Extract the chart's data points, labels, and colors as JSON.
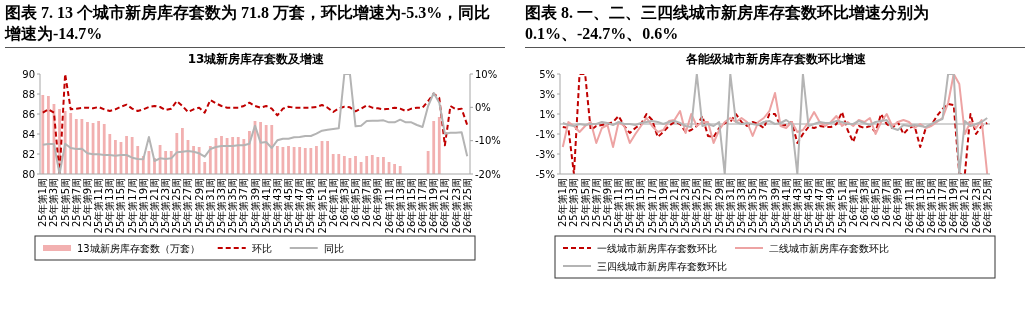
{
  "chart_data": [
    {
      "type": "bar",
      "title": "图表 7. 13 个城市新房库存套数为 71.8 万套，环比增速为-5.3%，同比增速为-14.7%",
      "subtitle": "13城新房库存套数及增速",
      "categories": [
        "25年第1周",
        null,
        "25年第3周",
        null,
        "25年第5周",
        null,
        "25年第7周",
        null,
        "25年第9周",
        null,
        "25年第11周",
        null,
        "25年第13周",
        null,
        "25年第15周",
        null,
        "25年第17周",
        null,
        "25年第19周",
        null,
        "25年第21周",
        null,
        "25年第23周",
        null,
        "25年第25周",
        null,
        "25年第27周",
        null,
        "25年第29周",
        null,
        "25年第31周",
        null,
        "25年第33周",
        null,
        "25年第35周",
        null,
        "25年第37周",
        null,
        "25年第39周",
        null,
        "25年第41周",
        null,
        "25年第43周",
        null,
        "25年第45周",
        null,
        "25年第47周",
        null,
        "25年第49周",
        null,
        "25年第51周",
        null,
        "26年第1周",
        null,
        "26年第3周",
        null,
        "26年第5周",
        null,
        "26年第7周",
        null,
        "26年第9周",
        null,
        "26年第11周",
        null,
        "26年第13周",
        null,
        "26年第15周",
        null,
        "26年第17周",
        null,
        "26年第19周",
        null,
        "26年第21周",
        null,
        "26年第23周",
        null,
        "26年第25周"
      ],
      "series": [
        {
          "name": "13城新房库存套数（万套）",
          "type": "bar",
          "color": "#f2b0b0",
          "values": [
            87.9,
            87.8,
            87.0,
            86.5,
            86.3,
            86.1,
            85.5,
            85.5,
            85.2,
            85.1,
            85.3,
            85.0,
            84.0,
            83.4,
            83.2,
            83.8,
            83.7,
            82.8,
            81.8,
            82.3,
            81.6,
            82.9,
            82.3,
            82.3,
            84.1,
            84.6,
            83.4,
            82.8,
            82.7,
            81.2,
            82.8,
            83.6,
            83.8,
            83.6,
            83.7,
            83.7,
            83.5,
            84.3,
            85.3,
            85.2,
            84.9,
            84.9,
            82.8,
            82.7,
            82.8,
            82.7,
            82.7,
            82.6,
            82.6,
            82.8,
            83.3,
            83.3,
            82.0,
            82.0,
            81.8,
            81.6,
            81.8,
            81.2,
            81.8,
            81.9,
            81.7,
            81.7,
            81.2,
            81.0,
            80.8,
            null,
            null,
            null,
            null,
            82.3,
            85.3,
            85.7,
            null,
            null,
            null,
            null,
            null
          ]
        },
        {
          "name": "环比",
          "type": "line",
          "axis": "y2",
          "line_style": "dashed",
          "color": "#c00000",
          "values": [
            -1.6,
            -0.6,
            -1.6,
            -20,
            10,
            -0.6,
            -0.4,
            -0.2,
            -0.1,
            -0.3,
            0.1,
            -0.6,
            -1.1,
            -0.6,
            0.2,
            0.8,
            -0.4,
            -1.1,
            -0.6,
            0.1,
            0.4,
            0.1,
            -0.8,
            -0.4,
            1.9,
            0.4,
            -1.4,
            -0.6,
            -0.1,
            -1.6,
            2.2,
            1.2,
            0.4,
            -0.1,
            -0.1,
            -0.1,
            0.4,
            1.4,
            0.4,
            -0.1,
            0.4,
            -0.4,
            -2.4,
            -0.4,
            0.2,
            -0.1,
            -0.1,
            -0.1,
            -0.1,
            0.1,
            0.7,
            -0.1,
            -1.4,
            -0.3,
            0.2,
            0,
            -1.2,
            -0.4,
            0.6,
            -0.1,
            -0.3,
            -0.6,
            -0.4,
            -0.1,
            -0.4,
            -1.1,
            -0.4,
            -0.1,
            -0.1,
            1.9,
            4.1,
            2.8,
            -11.4,
            0.4,
            -0.6,
            -0.4,
            -5.3
          ]
        },
        {
          "name": "同比",
          "type": "line",
          "axis": "y2",
          "color": "#b4b4b4",
          "values": [
            -11.2,
            -11.0,
            -11.0,
            -20,
            -10.9,
            -12.2,
            -12.5,
            -12.4,
            -13.8,
            -14.1,
            -14.1,
            -14.3,
            -14.3,
            -14.5,
            -14.3,
            -14.3,
            -15.1,
            -15.5,
            -15.6,
            -8.9,
            -16.1,
            -15.3,
            -15.5,
            -15.3,
            -13.5,
            -13.3,
            -13.1,
            -13.3,
            -13.8,
            -14.8,
            -12.5,
            -11.9,
            -11.6,
            -11.6,
            -11.6,
            -11.4,
            -11.4,
            -10.9,
            -5.5,
            -10.6,
            -10.4,
            -12.2,
            -9.9,
            -9.4,
            -9.4,
            -9.0,
            -8.9,
            -8.6,
            -8.6,
            -7.9,
            -7.0,
            -6.7,
            -6.5,
            -6.3,
            10,
            10,
            -5.7,
            -5.5,
            -4.1,
            -4.0,
            -4.0,
            -3.9,
            -4.5,
            -4.5,
            -3.7,
            -4.5,
            -4.5,
            -5.3,
            -5.9,
            0.4,
            4.3,
            1.4,
            -7.9,
            -7.6,
            -7.6,
            -7.5,
            -14.7
          ]
        }
      ],
      "ylim": [
        80,
        90
      ],
      "yticks": [
        80,
        82,
        84,
        86,
        88,
        90
      ],
      "y2lim": [
        -20,
        10
      ],
      "y2ticks": [
        {
          "value": -20,
          "label": "-20%"
        },
        {
          "value": -10,
          "label": "-10%"
        },
        {
          "value": 0,
          "label": "0%"
        },
        {
          "value": 10,
          "label": "10%"
        }
      ],
      "legend": "bottom"
    },
    {
      "type": "line",
      "title": "图表 8. 一、二、三四线城市新房库存套数环比增速分别为 0.1%、-24.7%、0.6%",
      "subtitle": "各能级城市新房库存套数环比增速",
      "categories": [
        "25年第1周",
        null,
        "25年第3周",
        null,
        "25年第5周",
        null,
        "25年第7周",
        null,
        "25年第9周",
        null,
        "25年第11周",
        null,
        "25年第13周",
        null,
        "25年第15周",
        null,
        "25年第17周",
        null,
        "25年第19周",
        null,
        "25年第21周",
        null,
        "25年第23周",
        null,
        "25年第25周",
        null,
        "25年第27周",
        null,
        "25年第29周",
        null,
        "25年第31周",
        null,
        "25年第33周",
        null,
        "25年第35周",
        null,
        "25年第37周",
        null,
        "25年第39周",
        null,
        "25年第41周",
        null,
        "25年第43周",
        null,
        "25年第45周",
        null,
        "25年第47周",
        null,
        "25年第49周",
        null,
        "25年第51周",
        null,
        "26年第1周",
        null,
        "26年第3周",
        null,
        "26年第5周",
        null,
        "26年第7周",
        null,
        "26年第9周",
        null,
        "26年第11周",
        null,
        "26年第13周",
        null,
        "26年第15周",
        null,
        "26年第17周",
        null,
        "26年第19周",
        null,
        "26年第21周",
        null,
        "26年第23周",
        null,
        "26年第25周"
      ],
      "series": [
        {
          "name": "一线城市新房库存套数环比",
          "line_style": "dashed",
          "color": "#c00000",
          "values": [
            -0.3,
            -0.4,
            -5,
            5,
            5,
            -0.6,
            -0.2,
            -0.1,
            0,
            0.2,
            0.8,
            -0.2,
            -0.9,
            -0.4,
            0,
            1.0,
            0.4,
            -1.3,
            -0.8,
            -0.2,
            0.2,
            0,
            -0.8,
            -0.6,
            -0.2,
            0.8,
            -1.2,
            -1.3,
            -0.4,
            0.1,
            0.2,
            1.0,
            0.2,
            -0.2,
            0.2,
            0,
            -0.4,
            1.0,
            1.0,
            -0.2,
            -0.1,
            0.2,
            -1.9,
            -1.0,
            -0.3,
            -0.4,
            -0.2,
            -0.3,
            -0.3,
            0,
            1.2,
            -0.6,
            -1.8,
            -0.2,
            -0.4,
            -0.2,
            -0.8,
            1.0,
            0,
            -0.4,
            0.2,
            -1.0,
            -0.4,
            -0.2,
            -2.3,
            -0.4,
            -0.1,
            0.8,
            1.5,
            2.0,
            1.9,
            -5,
            -5,
            1.0,
            -1.0,
            -0.2,
            0.1
          ]
        },
        {
          "name": "二线城市新房库存套数环比",
          "color": "#eda3a3",
          "values": [
            -2.3,
            0.2,
            -0.2,
            -0.8,
            -0.2,
            0.2,
            -1.9,
            -0.4,
            -0.1,
            -2.3,
            0.2,
            -0.2,
            -1.9,
            -1.0,
            -0.2,
            0.6,
            -0.2,
            -0.8,
            -0.6,
            0.3,
            0.4,
            1.3,
            -0.9,
            1.0,
            -0.2,
            0.2,
            0.2,
            -1.9,
            -0.6,
            0.2,
            0.6,
            0.2,
            0.6,
            0.2,
            -1.2,
            0.2,
            0.6,
            1.3,
            3.1,
            -0.2,
            -0.4,
            0.2,
            -0.8,
            -0.6,
            0.2,
            1.2,
            0.2,
            -0.2,
            0.2,
            0.8,
            -0.2,
            0.2,
            -0.2,
            0.4,
            0.2,
            0.6,
            -1.0,
            0.2,
            1.0,
            -0.2,
            0.2,
            0.4,
            0.2,
            -0.4,
            0,
            -0.4,
            -0.2,
            0.2,
            0.6,
            2.1,
            5,
            4.0,
            -1.0,
            0.2,
            -0.4,
            0.4,
            -5
          ]
        },
        {
          "name": "三四线城市新房库存套数环比",
          "color": "#b4b4b4",
          "values": [
            0.1,
            -0.1,
            -0.2,
            0,
            -0.1,
            0,
            0,
            0.2,
            0.1,
            -0.1,
            0.2,
            0,
            0,
            -0.1,
            0.1,
            0.2,
            0.3,
            0.2,
            0,
            0.2,
            0.3,
            0.1,
            -0.2,
            -0.3,
            5,
            -0.2,
            0,
            -0.2,
            0.2,
            -5,
            5,
            0.2,
            0,
            0.1,
            0,
            -0.1,
            0.2,
            0.3,
            0,
            0.1,
            0.4,
            0,
            -5,
            5,
            -0.2,
            0,
            0.2,
            0.1,
            0.1,
            0.3,
            0.2,
            0,
            0,
            0.3,
            0.1,
            -0.1,
            0.2,
            0.3,
            0.4,
            -0.4,
            -0.6,
            -0.1,
            -0.2,
            -0.1,
            -0.2,
            -0.3,
            0,
            0.3,
            0.5,
            5,
            5,
            -5,
            0.3,
            -0.2,
            0,
            0.2,
            0.6
          ]
        }
      ],
      "ylim": [
        -5,
        5
      ],
      "yticks": [
        {
          "value": -5,
          "label": "-5%"
        },
        {
          "value": -3,
          "label": "-3%"
        },
        {
          "value": -1,
          "label": "-1%"
        },
        {
          "value": 1,
          "label": "1%"
        },
        {
          "value": 3,
          "label": "3%"
        },
        {
          "value": 5,
          "label": "5%"
        }
      ],
      "ref_lines": [
        {
          "axis": "y",
          "value": 0,
          "color": "#a6a6a6"
        }
      ],
      "legend": "bottom"
    }
  ]
}
